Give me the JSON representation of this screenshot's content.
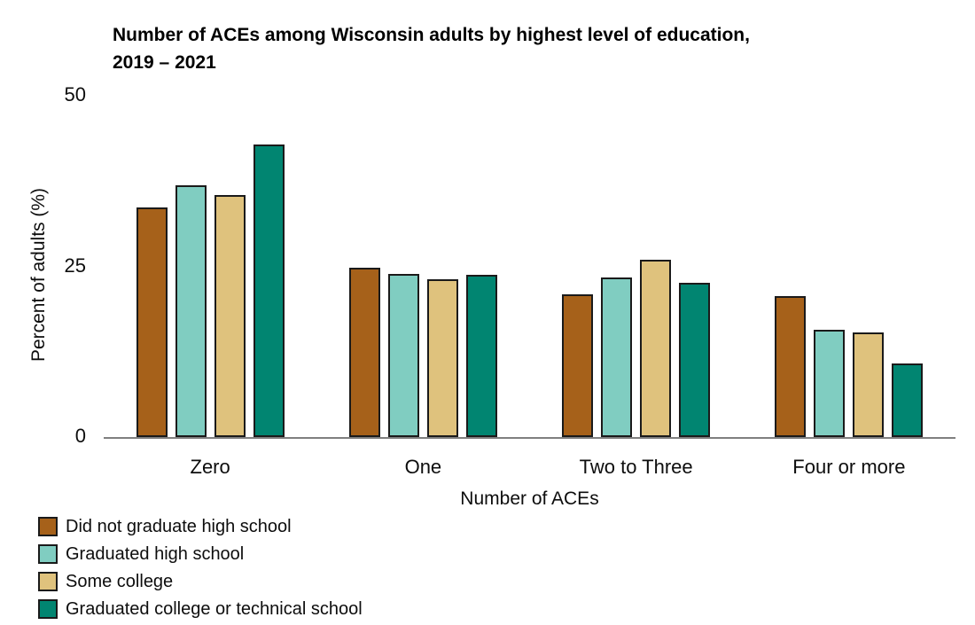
{
  "chart_data": {
    "type": "bar",
    "title": "Number of ACEs among Wisconsin adults by highest level of education, 2019 – 2021",
    "title_line1": "Number of ACEs among Wisconsin adults by highest level of education,",
    "title_line2": "2019 – 2021",
    "xlabel": "Number of ACEs",
    "ylabel": "Percent of adults (%)",
    "ylim": [
      0,
      50
    ],
    "yticks": [
      0,
      25,
      50
    ],
    "grid": false,
    "legend_position": "bottom-left",
    "categories": [
      "Zero",
      "One",
      "Two to Three",
      "Four or more"
    ],
    "series": [
      {
        "name": "Did not graduate high school",
        "color": "#A6611A",
        "values": [
          33.5,
          24.8,
          20.9,
          20.6
        ]
      },
      {
        "name": "Graduated high school",
        "color": "#80CDC1",
        "values": [
          36.8,
          23.9,
          23.3,
          15.7
        ]
      },
      {
        "name": "Some college",
        "color": "#DFC27D",
        "values": [
          35.4,
          23.0,
          25.9,
          15.3
        ]
      },
      {
        "name": "Graduated college or technical school",
        "color": "#018571",
        "values": [
          42.7,
          23.7,
          22.6,
          10.7
        ]
      }
    ],
    "colors": {
      "axis_line": "#7F7F7F",
      "bar_border": "#1A1A1A",
      "text": "#0D0D0D"
    }
  }
}
